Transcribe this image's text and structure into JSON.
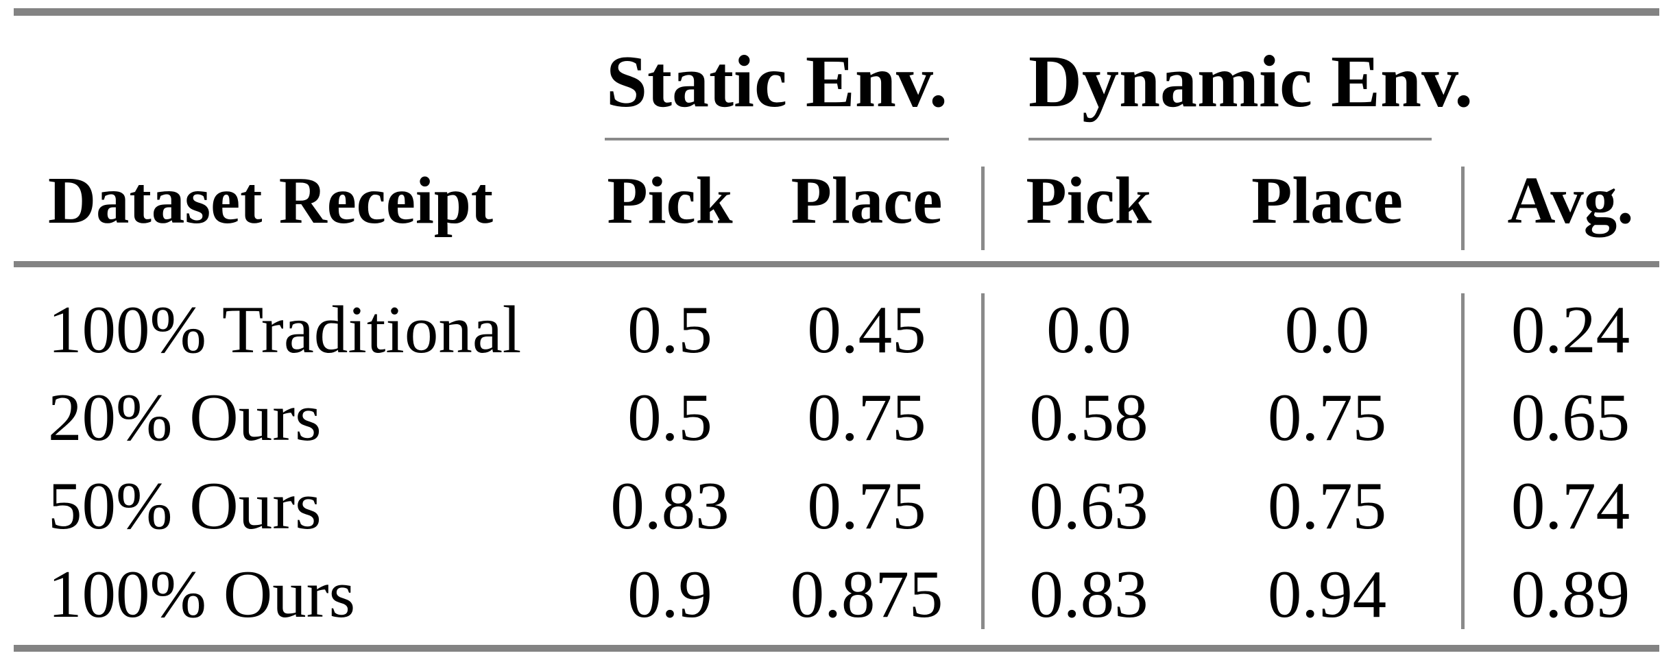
{
  "table": {
    "groups": [
      {
        "label": "Static Env."
      },
      {
        "label": "Dynamic Env."
      }
    ],
    "columns": [
      {
        "id": "dataset",
        "label": "Dataset Receipt"
      },
      {
        "id": "static_pick",
        "label": "Pick"
      },
      {
        "id": "static_place",
        "label": "Place"
      },
      {
        "id": "dynamic_pick",
        "label": "Pick"
      },
      {
        "id": "dynamic_place",
        "label": "Place"
      },
      {
        "id": "avg",
        "label": "Avg."
      }
    ],
    "rows": [
      {
        "cells": [
          "100% Traditional",
          "0.5",
          "0.45",
          "0.0",
          "0.0",
          "0.24"
        ]
      },
      {
        "cells": [
          "20% Ours",
          "0.5",
          "0.75",
          "0.58",
          "0.75",
          "0.65"
        ]
      },
      {
        "cells": [
          "50% Ours",
          "0.83",
          "0.75",
          "0.63",
          "0.75",
          "0.74"
        ]
      },
      {
        "cells": [
          "100% Ours",
          "0.9",
          "0.875",
          "0.83",
          "0.94",
          "0.89"
        ]
      }
    ]
  },
  "colors": {
    "rule_thick": "#838383",
    "rule_thin": "#8a8a8a",
    "text": "#000000",
    "background": "#ffffff"
  },
  "chart_data": {
    "type": "table",
    "column_groups": [
      "Static Env.",
      "Dynamic Env."
    ],
    "columns": [
      "Dataset Receipt",
      "Static Env. Pick",
      "Static Env. Place",
      "Dynamic Env. Pick",
      "Dynamic Env. Place",
      "Avg."
    ],
    "rows": [
      [
        "100% Traditional",
        0.5,
        0.45,
        0.0,
        0.0,
        0.24
      ],
      [
        "20% Ours",
        0.5,
        0.75,
        0.58,
        0.75,
        0.65
      ],
      [
        "50% Ours",
        0.83,
        0.75,
        0.63,
        0.75,
        0.74
      ],
      [
        "100% Ours",
        0.9,
        0.875,
        0.83,
        0.94,
        0.89
      ]
    ]
  }
}
